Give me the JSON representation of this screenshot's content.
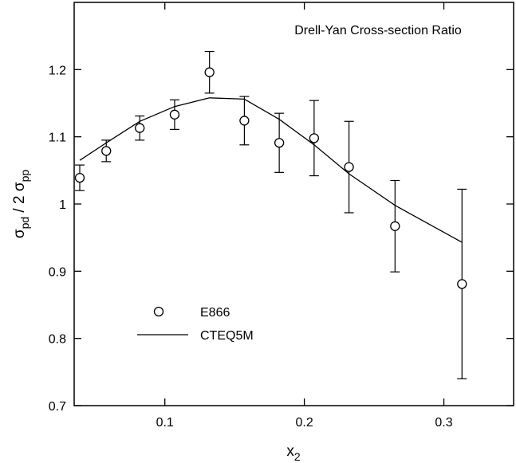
{
  "chart_data": {
    "type": "scatter",
    "title": "Drell-Yan Cross-section Ratio",
    "xlabel": {
      "base": "x",
      "sub": "2"
    },
    "ylabel": {
      "p1": "σ",
      "s1": "pd",
      "mid": " / 2 σ",
      "s2": "pp"
    },
    "xlim": [
      0.035,
      0.35
    ],
    "ylim": [
      0.7,
      1.3
    ],
    "x_ticks": [
      0.1,
      0.2,
      0.3
    ],
    "x_tick_labels": [
      "0.1",
      "0.2",
      "0.3"
    ],
    "y_ticks": [
      0.7,
      0.8,
      0.9,
      1.0,
      1.1,
      1.2
    ],
    "y_tick_labels": [
      "0.7",
      "0.8",
      "0.9",
      "1",
      "1.1",
      "1.2"
    ],
    "legend_position": "lower-left",
    "grid": false,
    "series": [
      {
        "name": "E866",
        "kind": "points",
        "x": [
          0.039,
          0.058,
          0.082,
          0.107,
          0.132,
          0.157,
          0.182,
          0.207,
          0.232,
          0.265,
          0.313
        ],
        "y": [
          1.039,
          1.079,
          1.113,
          1.133,
          1.196,
          1.124,
          1.091,
          1.098,
          1.055,
          0.967,
          0.881
        ],
        "y_err": [
          0.019,
          0.016,
          0.018,
          0.022,
          0.031,
          0.036,
          0.044,
          0.056,
          0.068,
          0.068,
          0.141
        ]
      },
      {
        "name": "CTEQ5M",
        "kind": "line",
        "x": [
          0.039,
          0.058,
          0.082,
          0.107,
          0.132,
          0.157,
          0.182,
          0.207,
          0.232,
          0.265,
          0.313
        ],
        "y": [
          1.065,
          1.091,
          1.123,
          1.145,
          1.158,
          1.156,
          1.126,
          1.088,
          1.045,
          0.998,
          0.943
        ]
      }
    ]
  }
}
